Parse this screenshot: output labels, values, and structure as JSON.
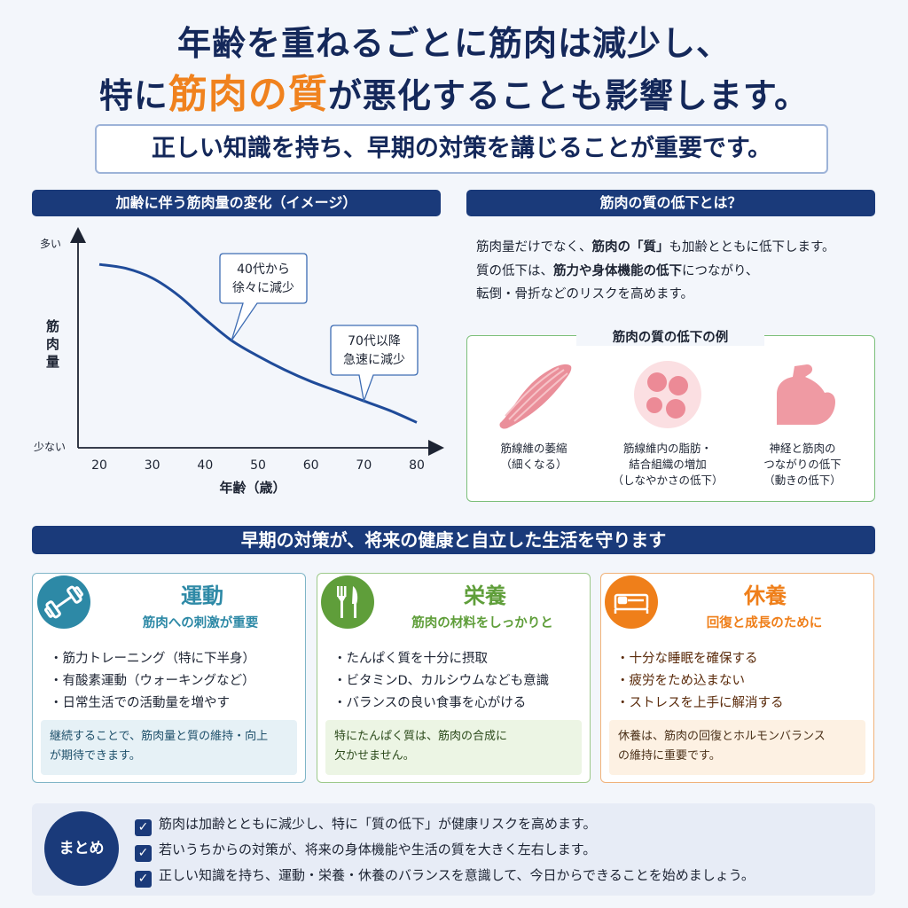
{
  "headline": {
    "line1": "年齢を重ねるごとに筋肉は減少し、",
    "line2_pre": "特に",
    "line2_accent": "筋肉の質",
    "line2_post": "が悪化することも影響します。",
    "subtitle": "正しい知識を持ち、早期の対策を講じることが重要です。"
  },
  "chart_section": {
    "header": "加齢に伴う筋肉量の変化（イメージ）"
  },
  "chart_data": {
    "type": "line",
    "title": "加齢に伴う筋肉量の変化（イメージ）",
    "xlabel": "年齢（歳）",
    "ylabel": "筋肉量",
    "x_ticks": [
      "20",
      "30",
      "40",
      "50",
      "60",
      "70",
      "80"
    ],
    "y_top_label": "多い",
    "y_bottom_label": "少ない",
    "xlim": [
      20,
      80
    ],
    "ylim": [
      0,
      100
    ],
    "series": [
      {
        "x": [
          20,
          25,
          30,
          35,
          40,
          45,
          50,
          55,
          60,
          65,
          70,
          75,
          80
        ],
        "y": [
          94,
          92,
          87,
          78,
          66,
          55,
          47,
          40,
          34,
          29,
          24,
          19,
          13
        ]
      }
    ],
    "annotations": [
      {
        "x": 45,
        "line1": "40代から",
        "line2": "徐々に減少"
      },
      {
        "x": 70,
        "line1": "70代以降",
        "line2": "急速に減少"
      }
    ],
    "grid": false,
    "line_color": "#1f4b99"
  },
  "quality": {
    "header": "筋肉の質の低下とは？",
    "line1_a": "筋肉量だけでなく、",
    "line1_b": "筋肉の「質」",
    "line1_c": "も加齢とともに低下します。",
    "line2_a": "質の低下は、",
    "line2_b": "筋力や身体機能の低下",
    "line2_c": "につながり、",
    "line3": "転倒・骨折などのリスクを高めます。",
    "examples_title": "筋肉の質の低下の例",
    "examples": [
      {
        "icon": "muscle-fiber-icon",
        "line1": "筋線維の萎縮",
        "line2": "（細くなる）"
      },
      {
        "icon": "fat-cells-icon",
        "line1": "筋線維内の脂肪・",
        "line2": "結合組織の増加",
        "line3": "（しなやかさの低下）"
      },
      {
        "icon": "arm-muscle-icon",
        "line1": "神経と筋肉の",
        "line2": "つながりの低下",
        "line3": "（動きの低下）"
      }
    ]
  },
  "band": {
    "title": "早期の対策が、将来の健康と自立した生活を守ります"
  },
  "cards": [
    {
      "icon": "dumbbell-icon",
      "title": "運動",
      "subtitle": "筋肉への刺激が重要",
      "bullets": [
        "・筋力トレーニング（特に下半身）",
        "・有酸素運動（ウォーキングなど）",
        "・日常生活での活動量を増やす"
      ],
      "note_line1": "継続することで、筋肉量と質の維持・向上",
      "note_line2": "が期待できます。",
      "color": "#2d89a6"
    },
    {
      "icon": "fork-knife-icon",
      "title": "栄養",
      "subtitle": "筋肉の材料をしっかりと",
      "bullets": [
        "・たんぱく質を十分に摂取",
        "・ビタミンD、カルシウムなども意識",
        "・バランスの良い食事を心がける"
      ],
      "note_line1": "特にたんぱく質は、筋肉の合成に",
      "note_line2": "欠かせません。",
      "color": "#5f9e3a"
    },
    {
      "icon": "bed-icon",
      "title": "休養",
      "subtitle": "回復と成長のために",
      "bullets": [
        "・十分な睡眠を確保する",
        "・疲労をため込まない",
        "・ストレスを上手に解消する"
      ],
      "note_line1": "休養は、筋肉の回復とホルモンバランス",
      "note_line2": "の維持に重要です。",
      "color": "#ef7f1a"
    }
  ],
  "summary": {
    "label": "まとめ",
    "items": [
      "筋肉は加齢とともに減少し、特に「質の低下」が健康リスクを高めます。",
      "若いうちからの対策が、将来の身体機能や生活の質を大きく左右します。",
      "正しい知識を持ち、運動・栄養・休養のバランスを意識して、今日からできることを始めましょう。"
    ],
    "check_icon": "check-icon"
  }
}
